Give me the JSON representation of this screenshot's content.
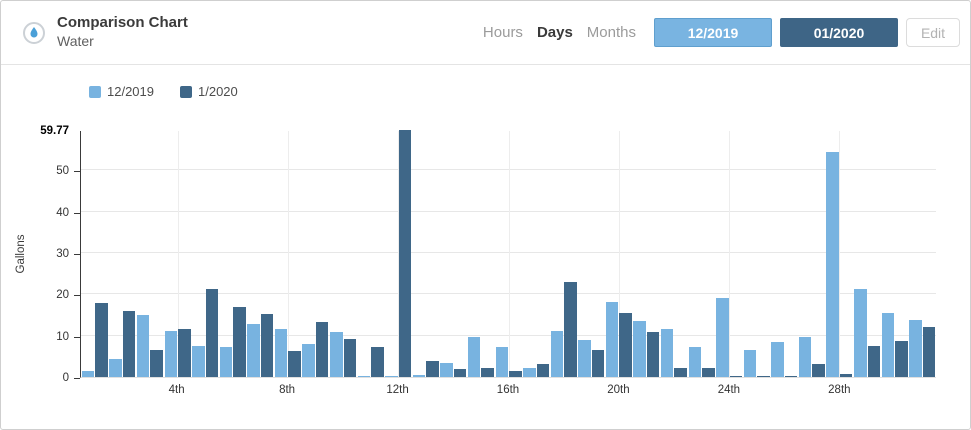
{
  "header": {
    "title": "Comparison Chart",
    "subtitle": "Water",
    "icon": "water-drop-icon",
    "tabs": [
      {
        "label": "Hours",
        "active": false
      },
      {
        "label": "Days",
        "active": true
      },
      {
        "label": "Months",
        "active": false
      }
    ],
    "period_buttons": [
      {
        "label": "12/2019",
        "color": "#79b4e1"
      },
      {
        "label": "01/2020",
        "color": "#3e6586"
      }
    ],
    "edit_label": "Edit"
  },
  "colors": {
    "series_light": "#78b3e0",
    "series_dark": "#3f6788",
    "axis_line": "#3a3a3a",
    "gridline": "#e7e7e7"
  },
  "chart_data": {
    "type": "bar",
    "title": "",
    "xlabel": "",
    "ylabel": "Gallons",
    "ylim": [
      0,
      59.77
    ],
    "y_ticks": [
      0,
      10,
      20,
      30,
      40,
      50
    ],
    "y_max_label": "59.77",
    "grid": true,
    "legend_position": "top-left",
    "categories": [
      "1",
      "2",
      "3",
      "4",
      "5",
      "6",
      "7",
      "8",
      "9",
      "10",
      "11",
      "12",
      "13",
      "14",
      "15",
      "16",
      "17",
      "18",
      "19",
      "20",
      "21",
      "22",
      "23",
      "24",
      "25",
      "26",
      "27",
      "28",
      "29",
      "30",
      "31"
    ],
    "x_tick_days": [
      4,
      8,
      12,
      16,
      20,
      24,
      28
    ],
    "x_tick_labels": [
      "4th",
      "8th",
      "12th",
      "16th",
      "20th",
      "24th",
      "28th"
    ],
    "series": [
      {
        "name": "12/2019",
        "color": "#78b3e0",
        "values": [
          1.5,
          4.3,
          15,
          11.2,
          7.5,
          7.3,
          12.8,
          11.6,
          8,
          11,
          0.3,
          0.2,
          0.4,
          3.3,
          9.7,
          7.3,
          2.1,
          11.1,
          9,
          18.1,
          13.6,
          11.6,
          7.3,
          19.2,
          6.6,
          8.4,
          9.8,
          54.5,
          21.2,
          15.6,
          13.8
        ]
      },
      {
        "name": "1/2020",
        "color": "#3f6788",
        "values": [
          17.8,
          16,
          6.5,
          11.7,
          21.2,
          17,
          15.2,
          6.3,
          13.4,
          9.3,
          7.3,
          59.77,
          3.9,
          1.9,
          2.3,
          1.4,
          3.1,
          23,
          6.5,
          15.5,
          10.9,
          2.3,
          2.3,
          0.2,
          0.2,
          0.2,
          3.1,
          0.7,
          7.6,
          8.8,
          12
        ]
      }
    ]
  }
}
